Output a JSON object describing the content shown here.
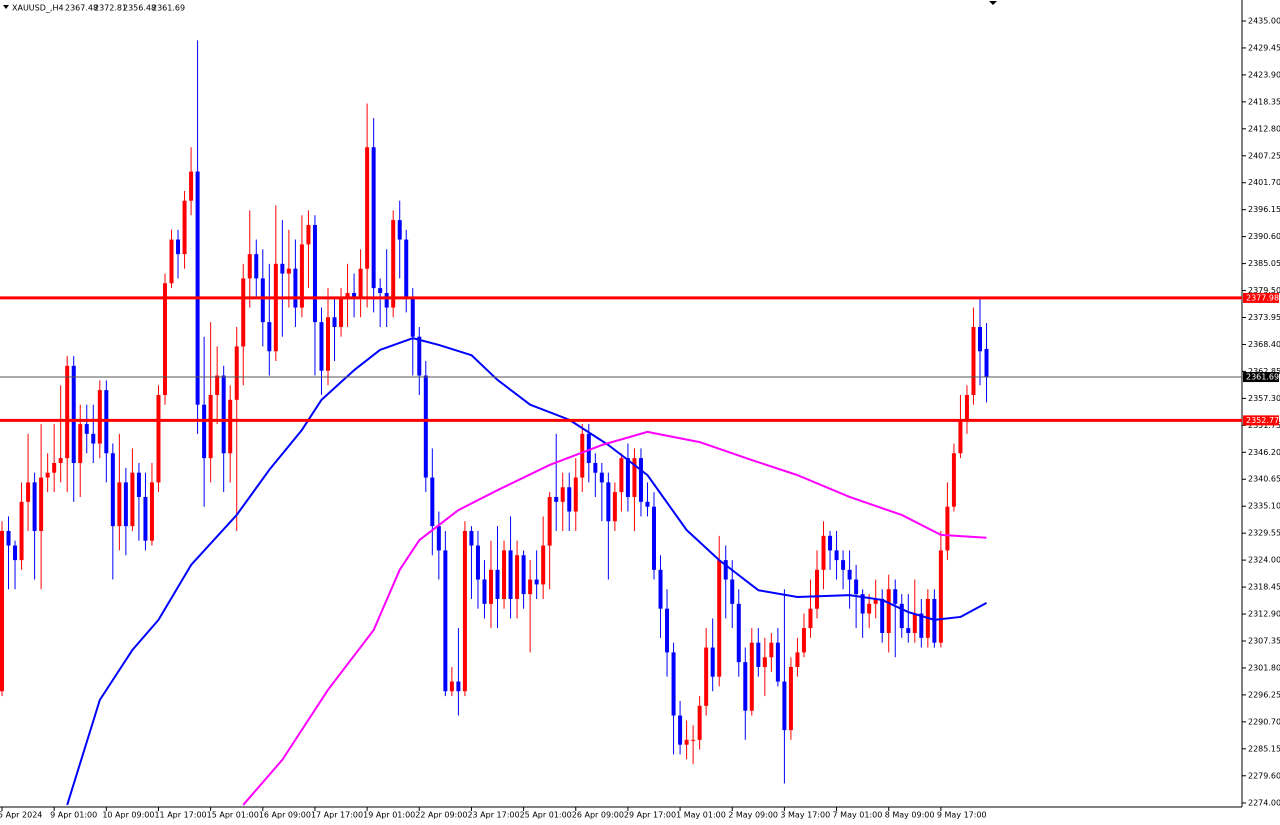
{
  "chart_data": {
    "type": "candlestick",
    "symbol": "XAUUSD_,H4",
    "up_color": "#ff0000",
    "down_color": "#0000ff",
    "categories": [
      "5 Apr 2024",
      null,
      null,
      null,
      null,
      null,
      null,
      null,
      "9 Apr 01:00",
      null,
      null,
      null,
      null,
      null,
      null,
      null,
      "10 Apr 09:00",
      null,
      null,
      null,
      null,
      null,
      null,
      null,
      "11 Apr 17:00",
      null,
      null,
      null,
      null,
      null,
      null,
      null,
      "15 Apr 01:00",
      null,
      null,
      null,
      null,
      null,
      null,
      null,
      "16 Apr 09:00",
      null,
      null,
      null,
      null,
      null,
      null,
      null,
      "17 Apr 17:00",
      null,
      null,
      null,
      null,
      null,
      null,
      null,
      "19 Apr 01:00",
      null,
      null,
      null,
      null,
      null,
      null,
      null,
      "22 Apr 09:00",
      null,
      null,
      null,
      null,
      null,
      null,
      null,
      "23 Apr 17:00",
      null,
      null,
      null,
      null,
      null,
      null,
      null,
      "25 Apr 01:00",
      null,
      null,
      null,
      null,
      null,
      null,
      null,
      "26 Apr 09:00",
      null,
      null,
      null,
      null,
      null,
      null,
      null,
      "29 Apr 17:00",
      null,
      null,
      null,
      null,
      null,
      null,
      null,
      "1 May 01:00",
      null,
      null,
      null,
      null,
      null,
      null,
      null,
      "2 May 09:00",
      null,
      null,
      null,
      null,
      null,
      null,
      null,
      "3 May 17:00",
      null,
      null,
      null,
      null,
      null,
      null,
      null,
      "7 May 01:00",
      null,
      null,
      null,
      null,
      null,
      null,
      null,
      "8 May 09:00",
      null,
      null,
      null,
      null,
      null,
      null,
      null,
      "9 May 17:00",
      null,
      null,
      null,
      null,
      null,
      null,
      null
    ],
    "open": [
      2297,
      2330,
      2327,
      2324,
      2336,
      2340,
      2330,
      2341,
      2342,
      2344,
      2345,
      2364,
      2344,
      2352,
      2350,
      2348,
      2359,
      2346,
      2331,
      2340,
      2331,
      2342,
      2337,
      2328,
      2340,
      2358,
      2381,
      2390,
      2387,
      2398,
      2404,
      2356,
      2345,
      2358,
      2362,
      2346,
      2357,
      2368,
      2382,
      2387,
      2382,
      2373,
      2367,
      2385,
      2383,
      2384,
      2376,
      2389,
      2393,
      2373,
      2363,
      2374,
      2372,
      2378,
      2379,
      2378,
      2384,
      2409,
      2380,
      2379,
      2376,
      2394,
      2390,
      2378,
      2370,
      2362,
      2341,
      2331,
      2326,
      2297,
      2299,
      2297,
      2330,
      2327,
      2320,
      2315,
      2322,
      2316,
      2326,
      2316,
      2325,
      2317,
      2320,
      2319,
      2327,
      2337,
      2336,
      2339,
      2334,
      2341,
      2350,
      2344,
      2342,
      2340,
      2332,
      2338,
      2345,
      2337,
      2345,
      2336,
      2335,
      2322,
      2314,
      2305,
      2292,
      2286,
      2287,
      2287,
      2294,
      2306,
      2300,
      2324,
      2320,
      2315,
      2303,
      2293,
      2307,
      2302,
      2304,
      2307,
      2299,
      2289,
      2302,
      2305,
      2310,
      2314,
      2322,
      2329,
      2326,
      2324,
      2322,
      2320,
      2317,
      2313,
      2315,
      2316,
      2309,
      2318,
      2315,
      2310,
      2309,
      2313,
      2308,
      2316,
      2307,
      2326,
      2335,
      2346,
      2353,
      2358,
      2372,
      2367.48
    ],
    "high": [
      2332,
      2333,
      2328,
      2340,
      2350,
      2342,
      2352,
      2346,
      2352,
      2360,
      2366,
      2366,
      2356,
      2356,
      2356,
      2361,
      2361,
      2348,
      2350,
      2343,
      2347,
      2344,
      2342,
      2344,
      2360,
      2383,
      2392,
      2392,
      2400,
      2409,
      2431,
      2370,
      2373,
      2368,
      2364,
      2360,
      2372,
      2385,
      2396,
      2390,
      2388,
      2385,
      2397,
      2394,
      2392,
      2390,
      2395,
      2396,
      2395,
      2376,
      2380,
      2378,
      2380,
      2385,
      2383,
      2388,
      2418,
      2415,
      2382,
      2388,
      2396,
      2398,
      2392,
      2380,
      2372,
      2365,
      2347,
      2334,
      2330,
      2302,
      2310,
      2332,
      2331,
      2330,
      2324,
      2328,
      2331,
      2328,
      2333,
      2328,
      2326,
      2324,
      2326,
      2333,
      2338,
      2350,
      2342,
      2342,
      2345,
      2352,
      2352,
      2346,
      2344,
      2342,
      2340,
      2346,
      2348,
      2347,
      2347,
      2340,
      2338,
      2325,
      2318,
      2307,
      2295,
      2291,
      2290,
      2296,
      2310,
      2312,
      2329,
      2327,
      2324,
      2318,
      2306,
      2310,
      2310,
      2308,
      2309,
      2310,
      2318,
      2304,
      2308,
      2313,
      2320,
      2326,
      2332,
      2330,
      2330,
      2326,
      2326,
      2323,
      2318,
      2317,
      2320,
      2318,
      2321,
      2320,
      2317,
      2317,
      2320,
      2316,
      2318,
      2318,
      2330,
      2340,
      2348,
      2358,
      2360,
      2376,
      2378,
      2372.81
    ],
    "low": [
      2296,
      2318,
      2318,
      2322,
      2330,
      2320,
      2318,
      2338,
      2338,
      2340,
      2338,
      2336,
      2337,
      2346,
      2344,
      2345,
      2340,
      2320,
      2326,
      2325,
      2330,
      2328,
      2326,
      2327,
      2338,
      2356,
      2380,
      2382,
      2384,
      2395,
      2350,
      2335,
      2340,
      2352,
      2338,
      2340,
      2330,
      2360,
      2376,
      2378,
      2368,
      2362,
      2365,
      2370,
      2376,
      2372,
      2374,
      2380,
      2362,
      2358,
      2360,
      2365,
      2370,
      2372,
      2374,
      2374,
      2376,
      2375,
      2372,
      2372,
      2374,
      2382,
      2375,
      2362,
      2358,
      2338,
      2325,
      2320,
      2296,
      2296,
      2292,
      2296,
      2316,
      2314,
      2312,
      2310,
      2310,
      2314,
      2312,
      2312,
      2314,
      2305,
      2316,
      2316,
      2318,
      2330,
      2330,
      2330,
      2330,
      2338,
      2340,
      2337,
      2332,
      2320,
      2330,
      2334,
      2334,
      2330,
      2333,
      2333,
      2320,
      2308,
      2300,
      2284,
      2284,
      2283,
      2282,
      2285,
      2292,
      2297,
      2298,
      2312,
      2310,
      2300,
      2287,
      2292,
      2300,
      2296,
      2301,
      2298,
      2278,
      2287,
      2300,
      2304,
      2308,
      2312,
      2318,
      2322,
      2320,
      2318,
      2314,
      2310,
      2308,
      2310,
      2312,
      2307,
      2305,
      2304,
      2308,
      2307,
      2307,
      2306,
      2306,
      2306,
      2306,
      2324,
      2334,
      2345,
      2350,
      2356,
      2360,
      2356.48
    ],
    "close": [
      2330,
      2327,
      2324,
      2336,
      2340,
      2330,
      2341,
      2342,
      2344,
      2345,
      2364,
      2344,
      2352,
      2350,
      2348,
      2359,
      2346,
      2331,
      2340,
      2331,
      2342,
      2337,
      2328,
      2340,
      2358,
      2381,
      2390,
      2387,
      2398,
      2404,
      2356,
      2345,
      2358,
      2362,
      2346,
      2357,
      2368,
      2382,
      2387,
      2382,
      2373,
      2367,
      2385,
      2383,
      2384,
      2376,
      2389,
      2393,
      2373,
      2363,
      2374,
      2372,
      2378,
      2379,
      2378,
      2384,
      2409,
      2380,
      2379,
      2376,
      2394,
      2390,
      2378,
      2370,
      2362,
      2341,
      2331,
      2326,
      2297,
      2299,
      2297,
      2330,
      2327,
      2320,
      2315,
      2322,
      2316,
      2326,
      2316,
      2325,
      2317,
      2320,
      2319,
      2327,
      2337,
      2336,
      2339,
      2334,
      2341,
      2350,
      2344,
      2342,
      2340,
      2332,
      2338,
      2345,
      2337,
      2345,
      2336,
      2335,
      2322,
      2314,
      2305,
      2292,
      2286,
      2287,
      2287,
      2294,
      2306,
      2300,
      2324,
      2320,
      2315,
      2303,
      2293,
      2307,
      2302,
      2304,
      2307,
      2299,
      2289,
      2302,
      2305,
      2310,
      2314,
      2322,
      2329,
      2326,
      2324,
      2322,
      2320,
      2317,
      2313,
      2315,
      2316,
      2309,
      2318,
      2315,
      2310,
      2309,
      2313,
      2308,
      2316,
      2307,
      2326,
      2335,
      2346,
      2353,
      2358,
      2372,
      2367,
      2361.69
    ],
    "lines": [
      {
        "color": "#0000ff",
        "x": [
          10,
          15,
          20,
          24,
          29,
          36,
          41,
          46,
          49,
          54,
          58,
          63,
          67,
          72,
          76,
          81,
          87,
          93,
          99,
          105,
          110,
          116,
          122,
          130,
          135,
          139,
          143,
          147,
          151
        ],
        "values": [
          2273.6,
          2295.2,
          2305.5,
          2311.7,
          2323,
          2333.3,
          2342.6,
          2350.8,
          2357,
          2363.1,
          2367.3,
          2369.7,
          2368.3,
          2366.2,
          2361.1,
          2356,
          2352.9,
          2347.7,
          2341.5,
          2330.2,
          2324,
          2317.8,
          2316.4,
          2316.8,
          2315.8,
          2313.3,
          2311.7,
          2312.3,
          2315.2
        ]
      },
      {
        "color": "#ff00ff",
        "x": [
          37,
          43,
          50,
          57,
          61,
          64,
          70,
          76,
          84,
          92,
          99,
          107,
          115,
          122,
          130,
          138,
          144,
          151
        ],
        "values": [
          2273.6,
          2282.9,
          2297.3,
          2309.6,
          2322,
          2328.1,
          2334.3,
          2338.4,
          2343.6,
          2347.7,
          2350.4,
          2348.3,
          2344.6,
          2341.5,
          2337,
          2333.3,
          2329.2,
          2328.6
        ]
      }
    ],
    "levels": [
      {
        "value": 2377.98,
        "color": "#ff0000"
      },
      {
        "value": 2352.77,
        "color": "#ff0000"
      }
    ],
    "current_price": 2361.69,
    "ylim": [
      2273.17,
      2439.32
    ],
    "yticks": [
      {
        "value": 2435,
        "label": "2435.00"
      },
      {
        "value": 2429.45,
        "label": "2429.45"
      },
      {
        "value": 2423.9,
        "label": "2423.90"
      },
      {
        "value": 2418.35,
        "label": "2418.35"
      },
      {
        "value": 2412.8,
        "label": "2412.80"
      },
      {
        "value": 2407.25,
        "label": "2407.25"
      },
      {
        "value": 2401.7,
        "label": "2401.70"
      },
      {
        "value": 2396.15,
        "label": "2396.15"
      },
      {
        "value": 2390.6,
        "label": "2390.60"
      },
      {
        "value": 2385.05,
        "label": "2385.05"
      },
      {
        "value": 2379.5,
        "label": "2379.50"
      },
      {
        "value": 2373.95,
        "label": "2373.95"
      },
      {
        "value": 2368.4,
        "label": "2368.40"
      },
      {
        "value": 2362.85,
        "label": "2362.85"
      },
      {
        "value": 2357.3,
        "label": "2357.30"
      },
      {
        "value": 2351.75,
        "label": "2351.75"
      },
      {
        "value": 2346.2,
        "label": "2346.20"
      },
      {
        "value": 2340.65,
        "label": "2340.65"
      },
      {
        "value": 2335.1,
        "label": "2335.10"
      },
      {
        "value": 2329.55,
        "label": "2329.55"
      },
      {
        "value": 2324,
        "label": "2324.00"
      },
      {
        "value": 2318.45,
        "label": "2318.45"
      },
      {
        "value": 2312.9,
        "label": "2312.90"
      },
      {
        "value": 2307.35,
        "label": "2307.35"
      },
      {
        "value": 2301.8,
        "label": "2301.80"
      },
      {
        "value": 2296.25,
        "label": "2296.25"
      },
      {
        "value": 2290.7,
        "label": "2290.70"
      },
      {
        "value": 2285.15,
        "label": "2285.15"
      },
      {
        "value": 2279.6,
        "label": "2279.60"
      },
      {
        "value": 2274,
        "label": "2274.00"
      }
    ]
  }
}
